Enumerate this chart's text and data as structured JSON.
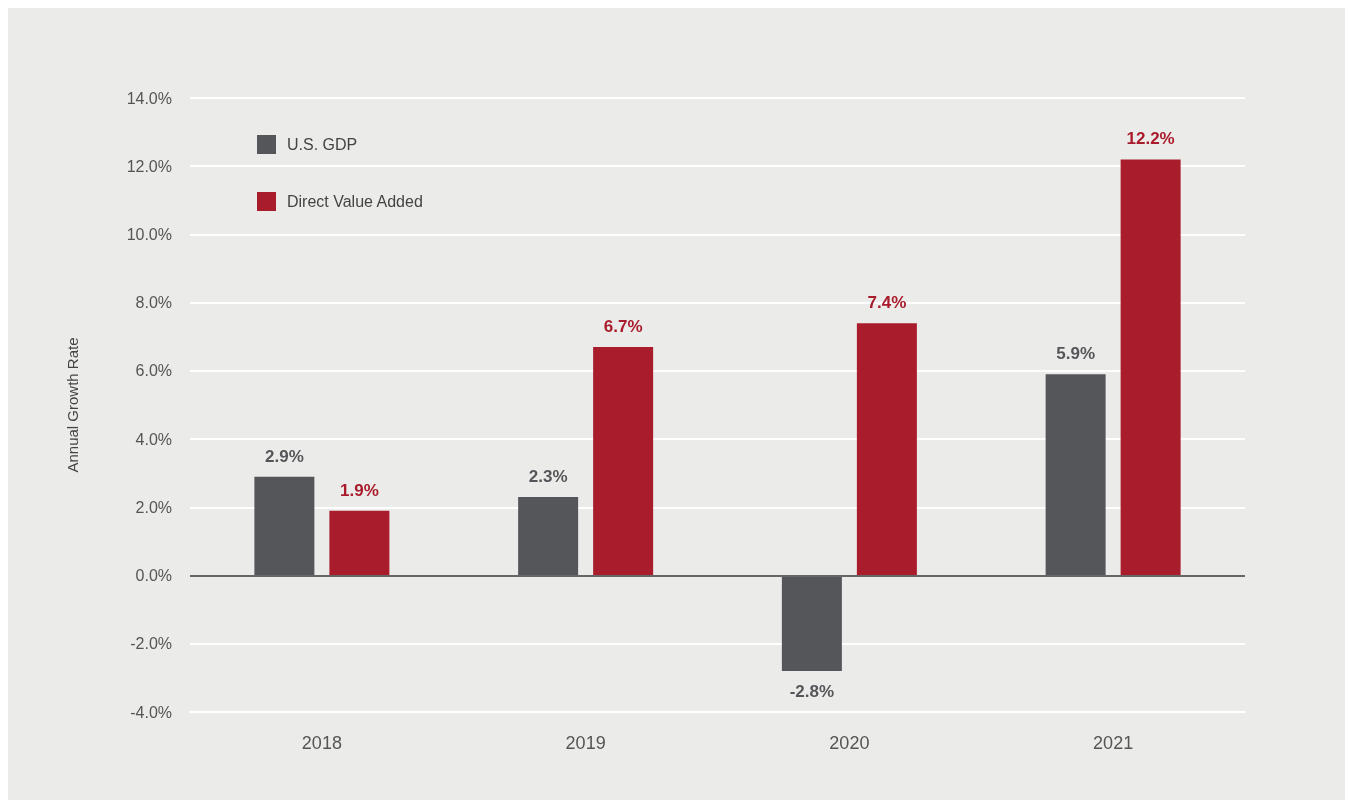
{
  "chart_data": {
    "type": "bar",
    "ylabel": "Annual Growth Rate",
    "categories": [
      "2018",
      "2019",
      "2020",
      "2021"
    ],
    "series": [
      {
        "name": "U.S. GDP",
        "color": "#55565a",
        "values": [
          2.9,
          2.3,
          -2.8,
          5.9
        ],
        "value_labels": [
          "2.9%",
          "2.3%",
          "-2.8%",
          "5.9%"
        ]
      },
      {
        "name": "Direct Value Added",
        "color": "#a91c2c",
        "values": [
          1.9,
          6.7,
          7.4,
          12.2
        ],
        "value_labels": [
          "1.9%",
          "6.7%",
          "7.4%",
          "12.2%"
        ]
      }
    ],
    "ylim": [
      -4,
      14
    ],
    "yticks": [
      {
        "value": -4,
        "label": "-4.0%"
      },
      {
        "value": -2,
        "label": "-2.0%"
      },
      {
        "value": 0,
        "label": "0.0%"
      },
      {
        "value": 2,
        "label": "2.0%"
      },
      {
        "value": 4,
        "label": "4.0%"
      },
      {
        "value": 6,
        "label": "6.0%"
      },
      {
        "value": 8,
        "label": "8.0%"
      },
      {
        "value": 10,
        "label": "10.0%"
      },
      {
        "value": 12,
        "label": "12.0%"
      },
      {
        "value": 14,
        "label": "14.0%"
      }
    ],
    "grid": "y",
    "legend": "top left"
  }
}
